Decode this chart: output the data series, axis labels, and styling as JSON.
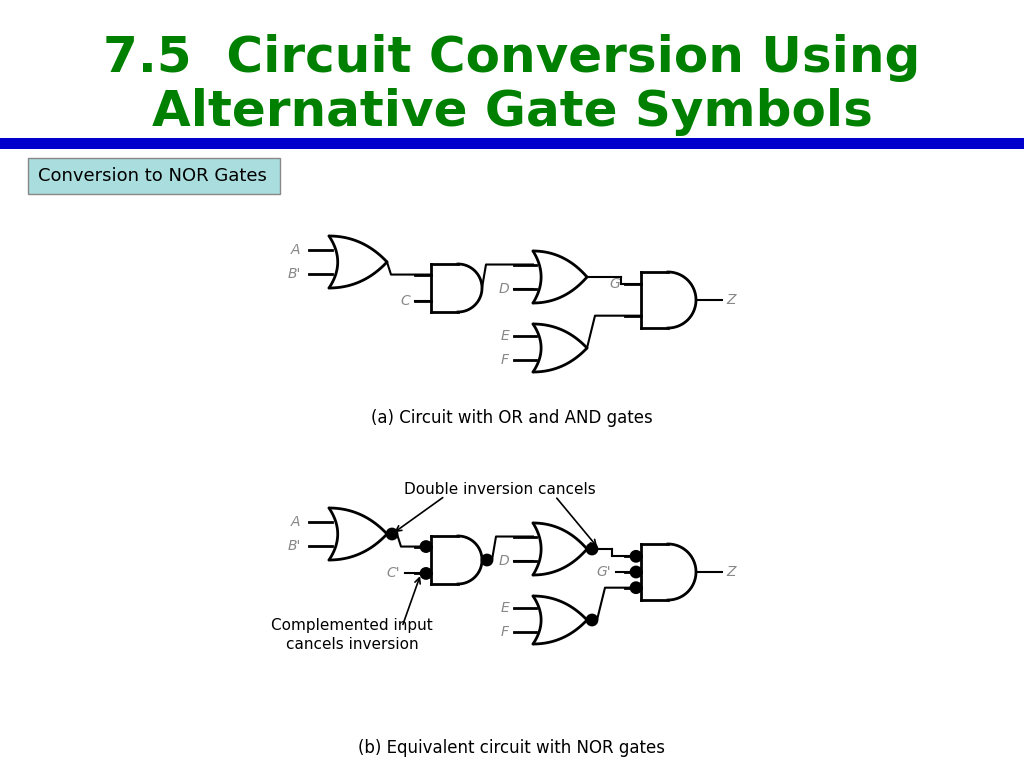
{
  "title_line1": "7.5  Circuit Conversion Using",
  "title_line2": "Alternative Gate Symbols",
  "title_color": "#008000",
  "title_fontsize": 36,
  "blue_bar_color": "#0000CC",
  "subtitle_text": "Conversion to NOR Gates",
  "subtitle_bg": "#aadddd",
  "caption_a": "(a) Circuit with OR and AND gates",
  "caption_b": "(b) Equivalent circuit with NOR gates",
  "bg_color": "#ffffff",
  "gate_color": "#000000",
  "label_color": "#888888"
}
